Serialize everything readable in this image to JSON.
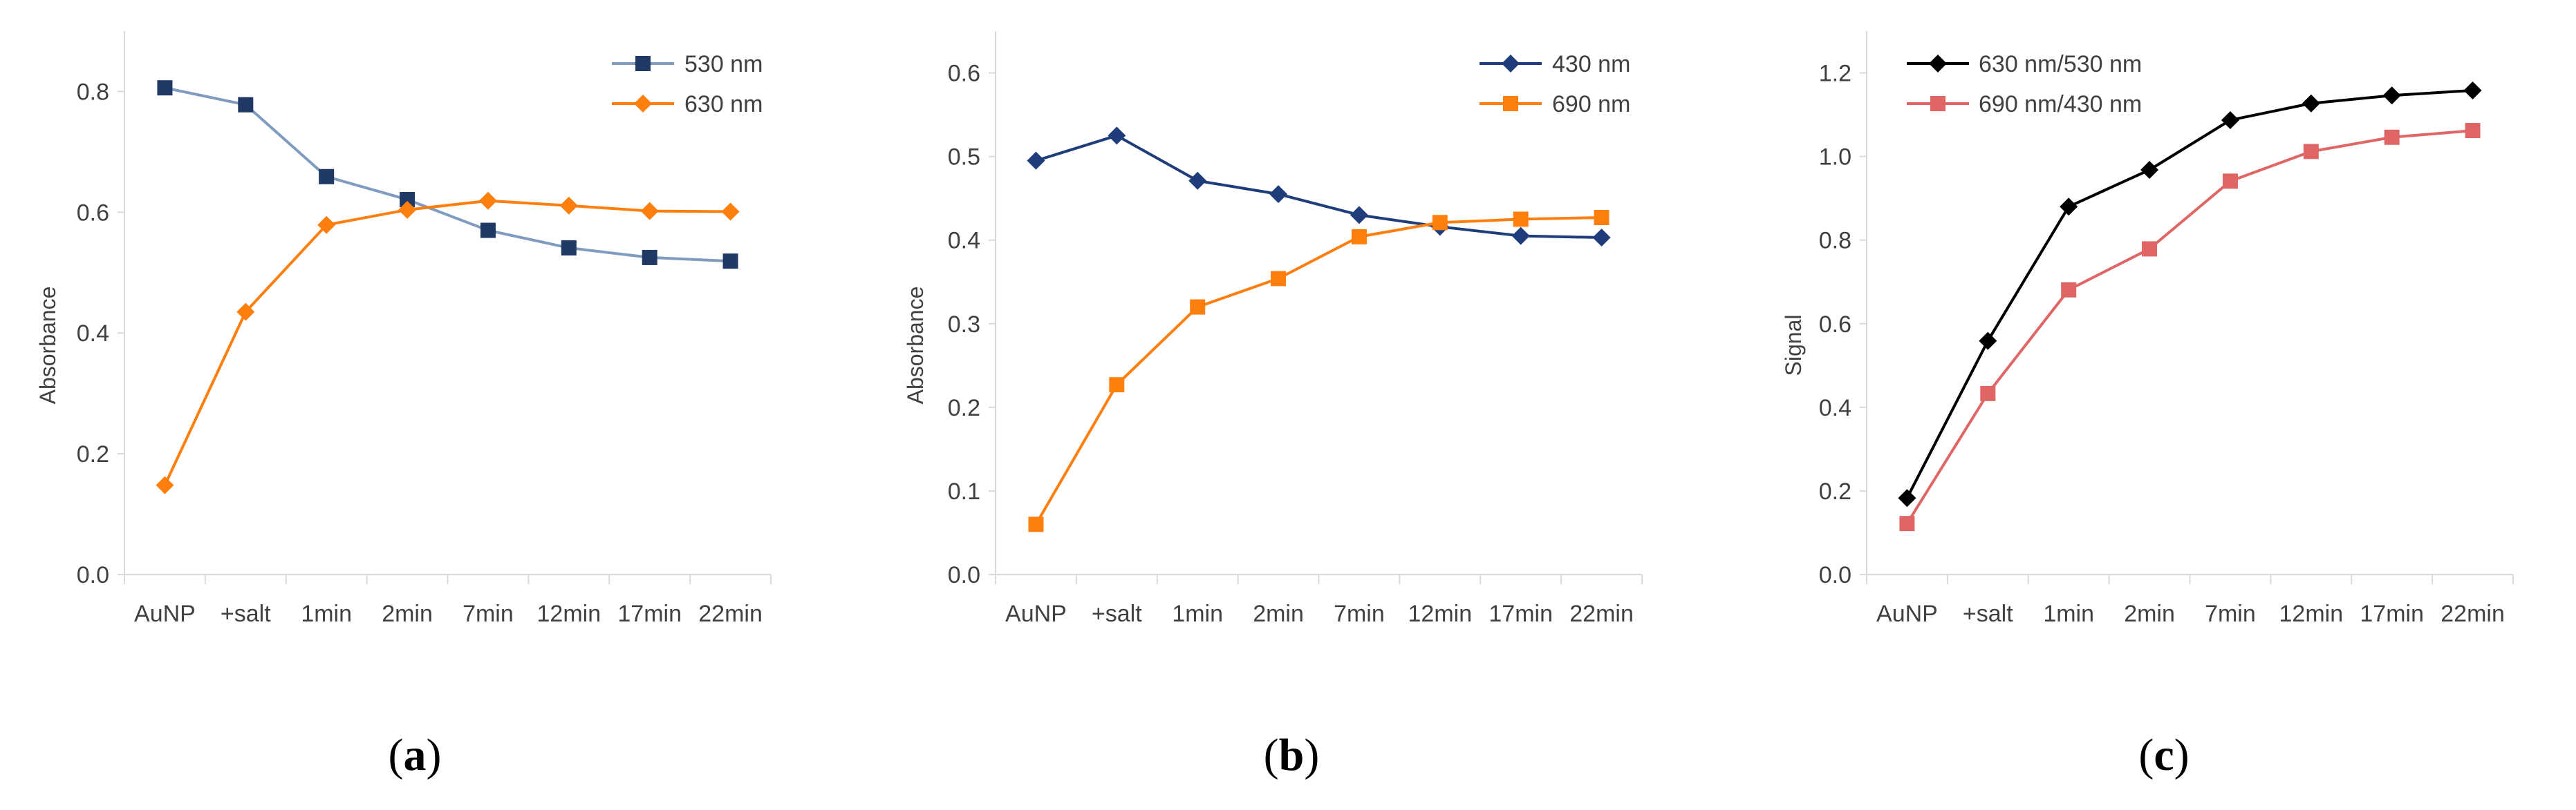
{
  "figure": {
    "panels": [
      "(a)",
      "(b)",
      "(c)"
    ]
  },
  "chart_data": [
    {
      "type": "line",
      "panel_label": "(a)",
      "panel_letter": "a",
      "categories": [
        "AuNP",
        "+salt",
        "1min",
        "2min",
        "7min",
        "12min",
        "17min",
        "22min"
      ],
      "ylabel": "Absorbance",
      "xlabel": "",
      "ylim": [
        0,
        0.9
      ],
      "yticks": [
        0.0,
        0.2,
        0.4,
        0.6,
        0.8
      ],
      "ytick_labels": [
        "0.0",
        "0.2",
        "0.4",
        "0.6",
        "0.8"
      ],
      "legend_position": "top-right",
      "grid": false,
      "series": [
        {
          "name": "530 nm",
          "color": "#7f9bbf",
          "marker_color": "#1f3864",
          "marker": "square",
          "values": [
            0.806,
            0.778,
            0.659,
            0.621,
            0.57,
            0.541,
            0.525,
            0.519
          ]
        },
        {
          "name": "630 nm",
          "color": "#ff7f0e",
          "marker_color": "#ff7f0e",
          "marker": "diamond",
          "values": [
            0.148,
            0.435,
            0.579,
            0.604,
            0.619,
            0.611,
            0.602,
            0.601
          ]
        }
      ]
    },
    {
      "type": "line",
      "panel_label": "(b)",
      "panel_letter": "b",
      "categories": [
        "AuNP",
        "+salt",
        "1min",
        "2min",
        "7min",
        "12min",
        "17min",
        "22min"
      ],
      "ylabel": "Absorbance",
      "xlabel": "",
      "ylim": [
        0,
        0.65
      ],
      "yticks": [
        0.0,
        0.1,
        0.2,
        0.3,
        0.4,
        0.5,
        0.6
      ],
      "ytick_labels": [
        "0.0",
        "0.1",
        "0.2",
        "0.3",
        "0.4",
        "0.5",
        "0.6"
      ],
      "legend_position": "top-right",
      "grid": false,
      "series": [
        {
          "name": "430 nm",
          "color": "#1f3d7a",
          "marker_color": "#1f3d7a",
          "marker": "diamond",
          "values": [
            0.495,
            0.525,
            0.471,
            0.455,
            0.43,
            0.416,
            0.405,
            0.403
          ]
        },
        {
          "name": "690 nm",
          "color": "#ff7f0e",
          "marker_color": "#ff7f0e",
          "marker": "square",
          "values": [
            0.06,
            0.227,
            0.32,
            0.354,
            0.404,
            0.421,
            0.425,
            0.427
          ]
        }
      ]
    },
    {
      "type": "line",
      "panel_label": "(c)",
      "panel_letter": "c",
      "categories": [
        "AuNP",
        "+salt",
        "1min",
        "2min",
        "7min",
        "12min",
        "17min",
        "22min"
      ],
      "ylabel": "Signal",
      "xlabel": "",
      "ylim": [
        0,
        1.3
      ],
      "yticks": [
        0.0,
        0.2,
        0.4,
        0.6,
        0.8,
        1.0,
        1.2
      ],
      "ytick_labels": [
        "0.0",
        "0.2",
        "0.4",
        "0.6",
        "0.8",
        "1.0",
        "1.2"
      ],
      "legend_position": "top-left",
      "grid": false,
      "series": [
        {
          "name": "630 nm/530 nm",
          "color": "#000000",
          "marker_color": "#000000",
          "marker": "diamond",
          "values": [
            0.183,
            0.559,
            0.88,
            0.968,
            1.087,
            1.127,
            1.146,
            1.158
          ]
        },
        {
          "name": "690 nm/430 nm",
          "color": "#e06666",
          "marker_color": "#e06666",
          "marker": "square",
          "values": [
            0.122,
            0.433,
            0.681,
            0.779,
            0.941,
            1.012,
            1.046,
            1.062
          ]
        }
      ]
    }
  ]
}
